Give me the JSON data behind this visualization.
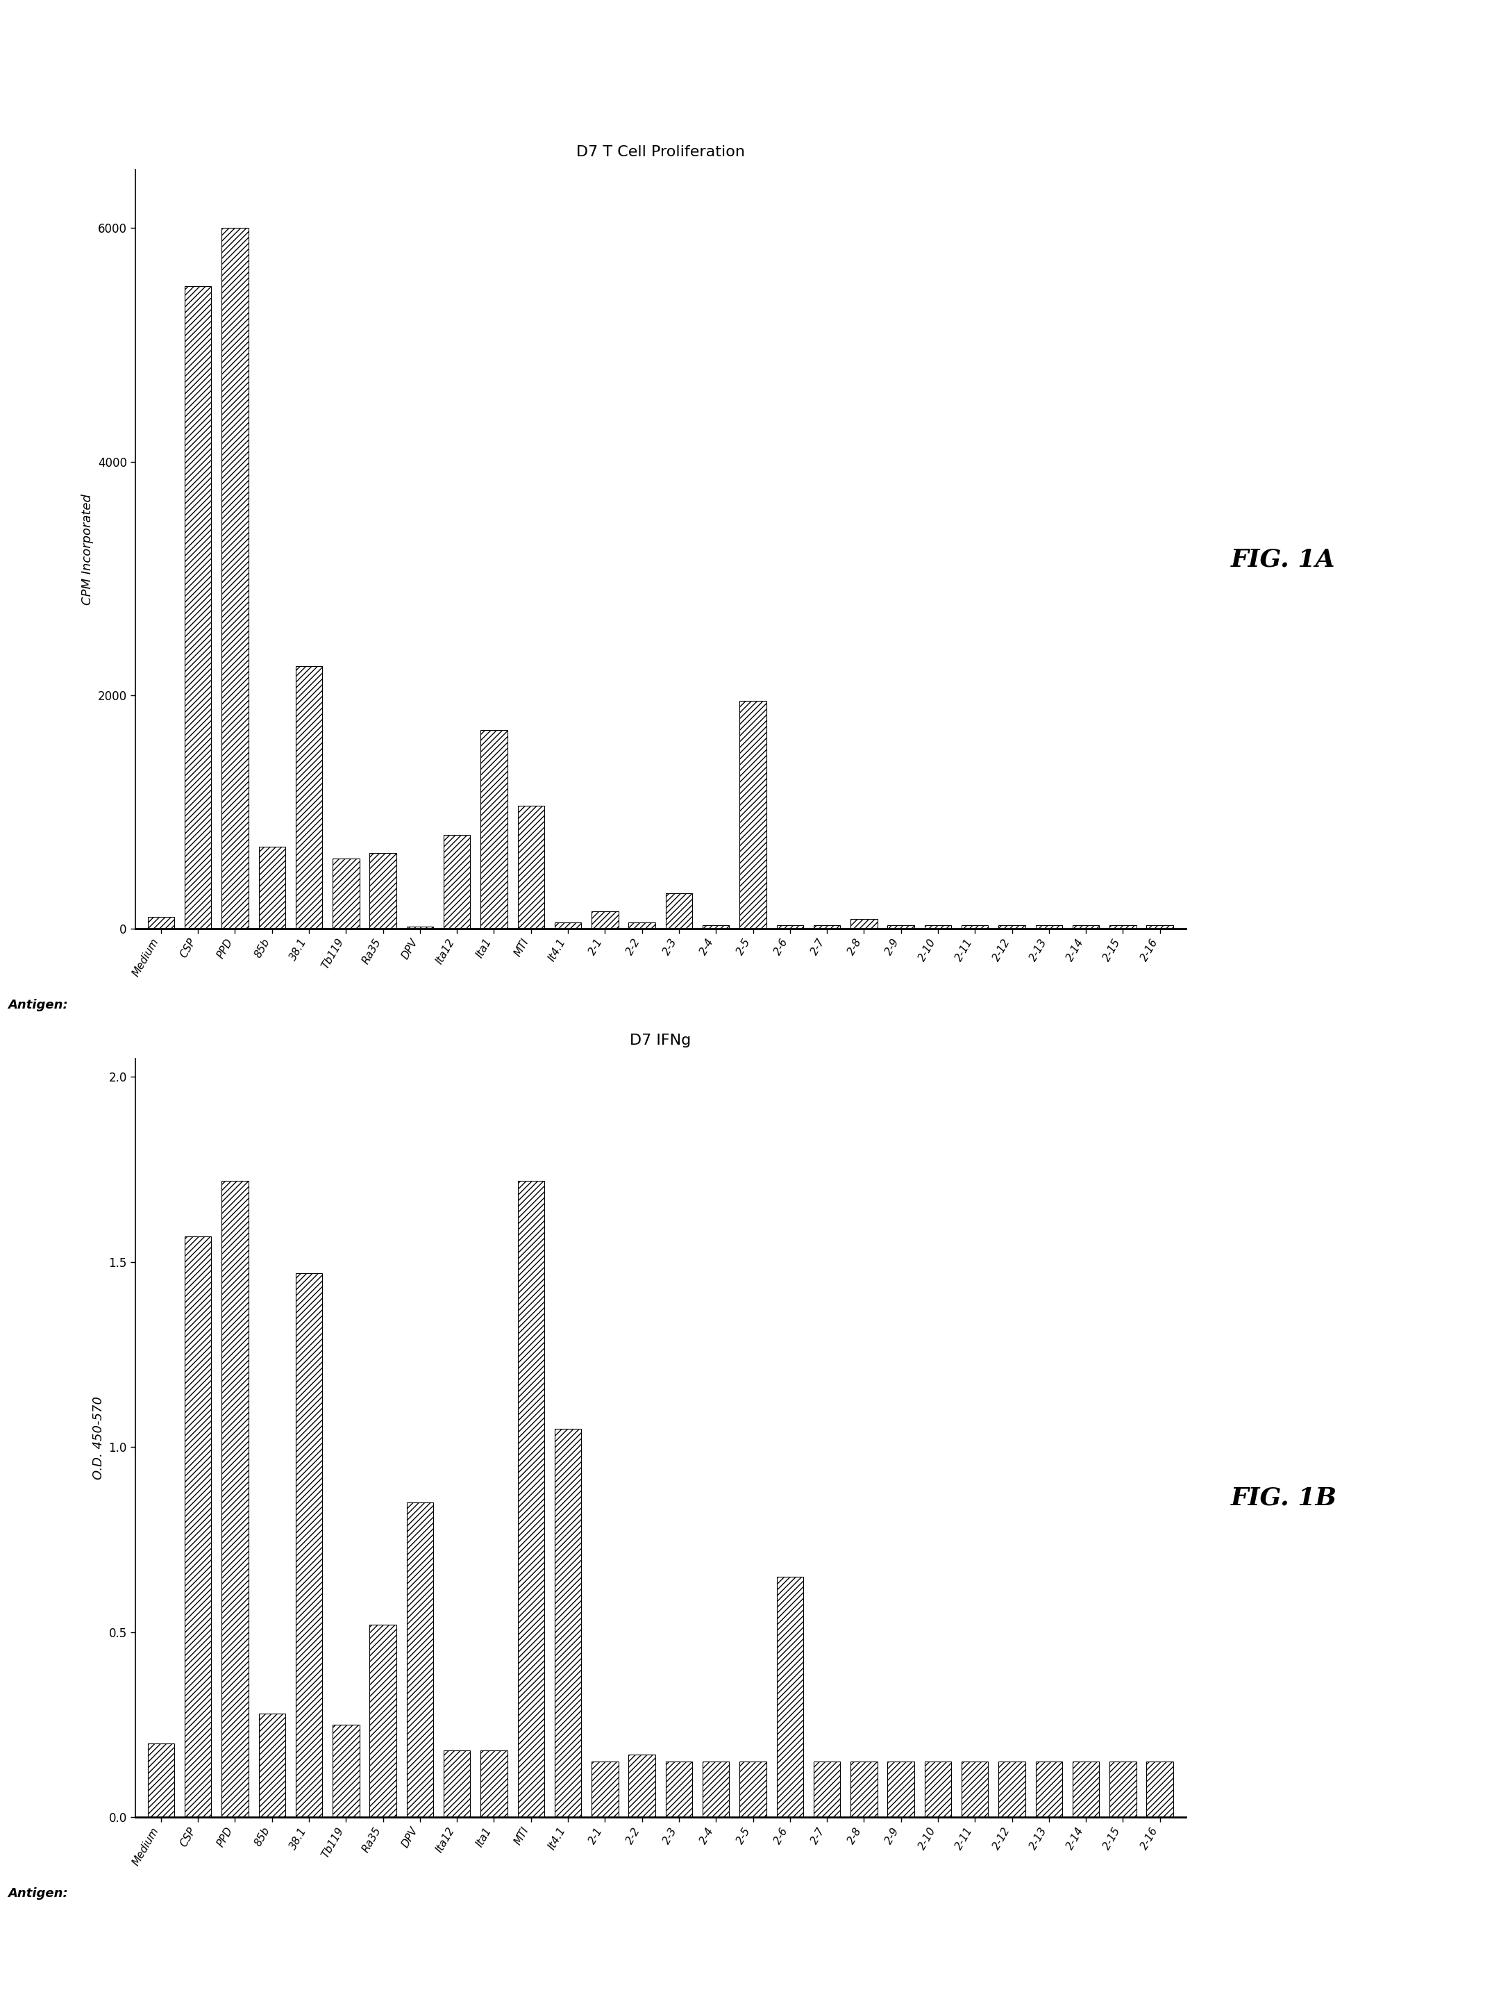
{
  "fig1a": {
    "title": "D7 T Cell Proliferation",
    "ylabel": "CPM Incorporated",
    "xlabel_label": "Antigen:",
    "categories": [
      "Medium",
      "CSP",
      "PPD",
      "85b",
      "38.1",
      "Tb119",
      "Ra35",
      "DPV",
      "Ita12",
      "Ita1",
      "MTI",
      "It4.1",
      "2-1",
      "2-2",
      "2-3",
      "2-4",
      "2-5",
      "2-6",
      "2-7",
      "2-8",
      "2-9",
      "2-10",
      "2-11",
      "2-12",
      "2-13",
      "2-14",
      "2-15",
      "2-16"
    ],
    "values": [
      100,
      5500,
      6000,
      700,
      2250,
      600,
      650,
      20,
      800,
      1700,
      1050,
      50,
      150,
      50,
      300,
      30,
      1950,
      30,
      30,
      80,
      30,
      30,
      30,
      30,
      30,
      30,
      30,
      30
    ],
    "ylim": [
      0,
      6500
    ],
    "yticks": [
      0,
      2000,
      4000,
      6000
    ],
    "fig_label": "FIG. 1A"
  },
  "fig1b": {
    "title": "D7 IFNg",
    "ylabel": "O.D. 450-570",
    "xlabel_label": "Antigen:",
    "categories": [
      "Medium",
      "CSP",
      "PPD",
      "85b",
      "38.1",
      "Tb119",
      "Ra35",
      "DPV",
      "Ita12",
      "Ita1",
      "MTI",
      "It4.1",
      "2-1",
      "2-2",
      "2-3",
      "2-4",
      "2-5",
      "2-6",
      "2-7",
      "2-8",
      "2-9",
      "2-10",
      "2-11",
      "2-12",
      "2-13",
      "2-14",
      "2-15",
      "2-16"
    ],
    "values": [
      0.2,
      1.57,
      1.72,
      0.28,
      1.47,
      0.25,
      0.52,
      0.85,
      0.18,
      0.18,
      1.72,
      1.05,
      0.15,
      0.17,
      0.15,
      0.15,
      0.15,
      0.65,
      0.15,
      0.15,
      0.15,
      0.15,
      0.15,
      0.15,
      0.15,
      0.15,
      0.15,
      0.15
    ],
    "ylim": [
      0,
      2.05
    ],
    "yticks": [
      0,
      0.5,
      1.0,
      1.5,
      2.0
    ],
    "fig_label": "FIG. 1B"
  },
  "hatch_pattern": "////",
  "bar_color": "white",
  "bar_edgecolor": "black",
  "background_color": "white",
  "title_fontsize": 16,
  "ylabel_fontsize": 13,
  "ytick_fontsize": 12,
  "xtick_fontsize": 11,
  "antigen_fontsize": 13,
  "fig_label_fontsize": 26,
  "bar_linewidth": 0.8,
  "bar_width": 0.72,
  "xtick_rotation": 60
}
